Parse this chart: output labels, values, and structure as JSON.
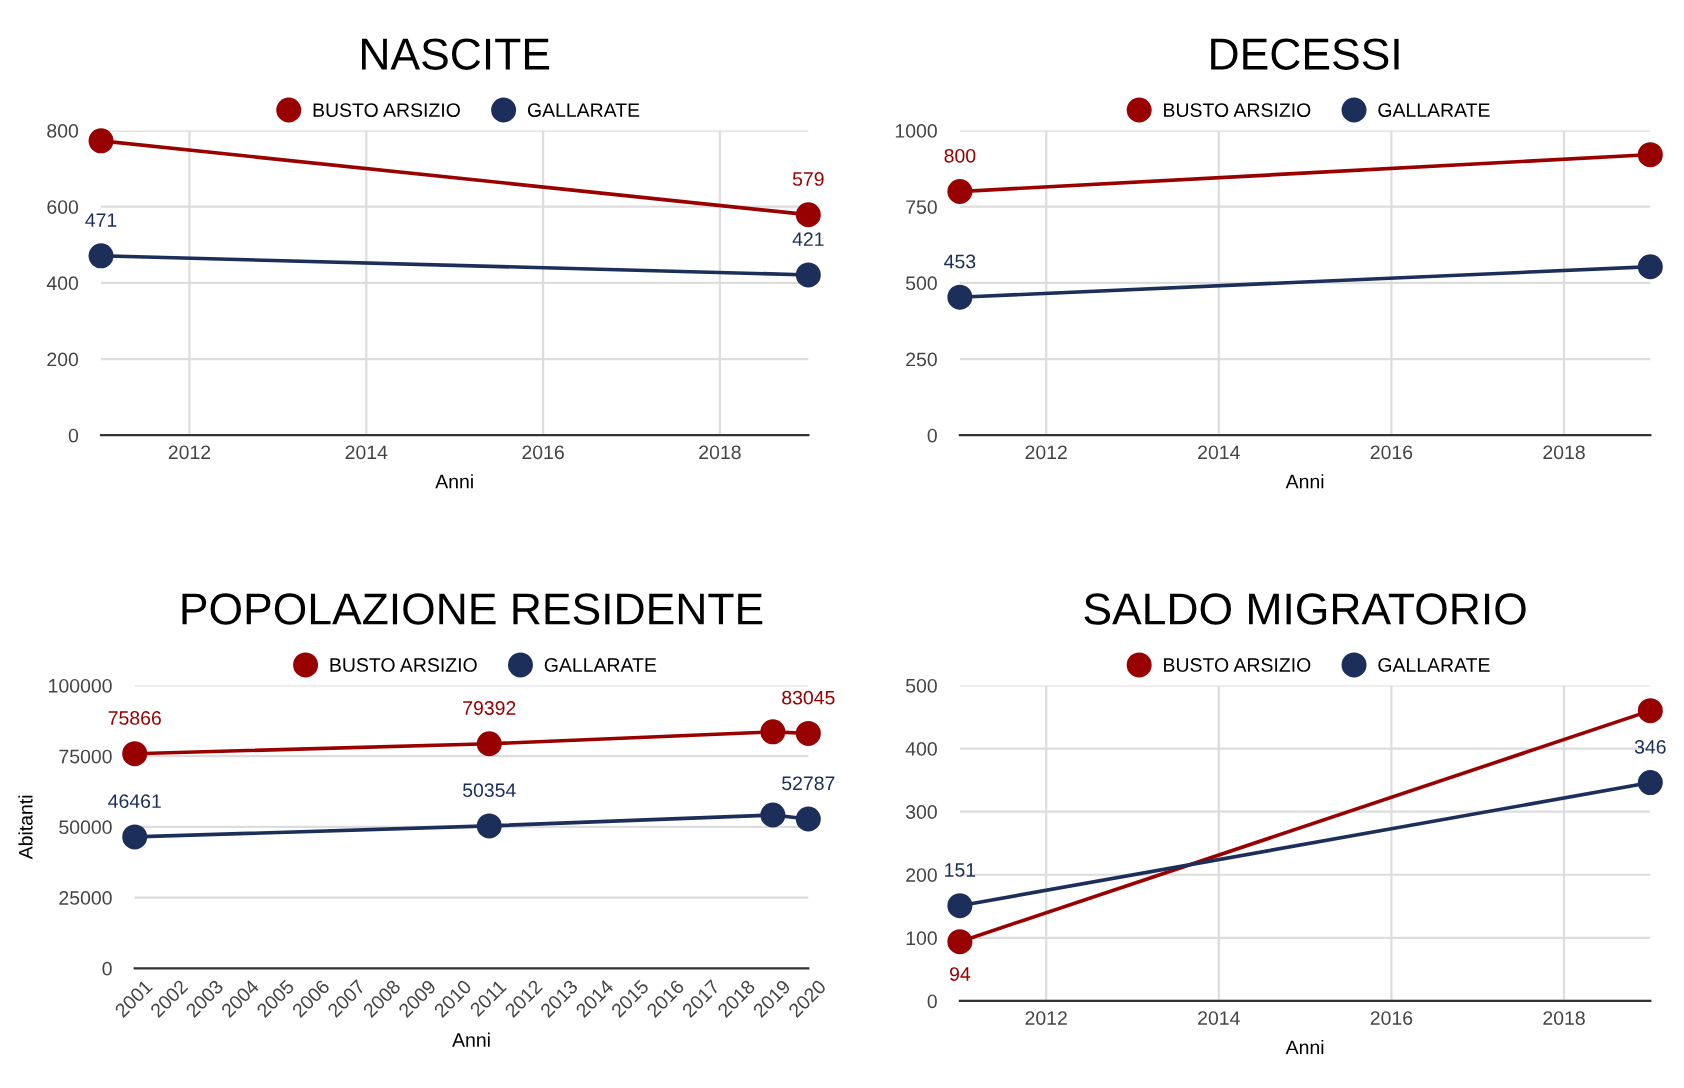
{
  "chart_data": [
    {
      "type": "line",
      "title": "NASCITE",
      "xlabel": "Anni",
      "x": [
        2011,
        2019
      ],
      "xlim": [
        2011,
        2019
      ],
      "xticks": [
        2012,
        2014,
        2016,
        2018
      ],
      "ylim": [
        0,
        800
      ],
      "yticks": [
        0,
        200,
        400,
        600,
        800
      ],
      "grid": true,
      "legend": "top",
      "marker": "circle",
      "series": [
        {
          "name": "BUSTO ARSIZIO",
          "color": "#990000",
          "values": [
            773,
            579
          ],
          "value_labels": [
            null,
            "579"
          ]
        },
        {
          "name": "GALLARATE",
          "color": "#1c2f5a",
          "values": [
            471,
            421
          ],
          "value_labels": [
            "471",
            "421"
          ]
        }
      ]
    },
    {
      "type": "line",
      "title": "DECESSI",
      "xlabel": "Anni",
      "x": [
        2011,
        2019
      ],
      "xlim": [
        2011,
        2019
      ],
      "xticks": [
        2012,
        2014,
        2016,
        2018
      ],
      "ylim": [
        0,
        1000
      ],
      "yticks": [
        0,
        250,
        500,
        750,
        1000
      ],
      "grid": true,
      "legend": "top",
      "marker": "circle",
      "series": [
        {
          "name": "BUSTO ARSIZIO",
          "color": "#990000",
          "values": [
            800,
            921
          ],
          "value_labels": [
            "800",
            null
          ]
        },
        {
          "name": "GALLARATE",
          "color": "#1c2f5a",
          "values": [
            453,
            553
          ],
          "value_labels": [
            "453",
            null
          ]
        }
      ]
    },
    {
      "type": "line",
      "title": "POPOLAZIONE RESIDENTE",
      "xlabel": "Anni",
      "ylabel": "Abitanti",
      "x": [
        2001,
        2011,
        2019,
        2020
      ],
      "xlim": [
        2001,
        2020
      ],
      "xticks": [
        2001,
        2002,
        2003,
        2004,
        2005,
        2006,
        2007,
        2008,
        2009,
        2010,
        2011,
        2012,
        2013,
        2014,
        2015,
        2016,
        2017,
        2018,
        2019,
        2020
      ],
      "ylim": [
        0,
        100000
      ],
      "yticks": [
        0,
        25000,
        50000,
        75000,
        100000
      ],
      "grid": "y",
      "legend": "top",
      "marker": "circle",
      "series": [
        {
          "name": "BUSTO ARSIZIO",
          "color": "#990000",
          "values": [
            75866,
            79392,
            83600,
            83045
          ],
          "value_labels": [
            "75866",
            "79392",
            null,
            "83045"
          ]
        },
        {
          "name": "GALLARATE",
          "color": "#1c2f5a",
          "values": [
            46461,
            50354,
            54200,
            52787
          ],
          "value_labels": [
            "46461",
            "50354",
            null,
            "52787"
          ]
        }
      ]
    },
    {
      "type": "line",
      "title": "SALDO MIGRATORIO",
      "xlabel": "Anni",
      "x": [
        2011,
        2019
      ],
      "xlim": [
        2011,
        2019
      ],
      "xticks": [
        2012,
        2014,
        2016,
        2018
      ],
      "ylim": [
        0,
        500
      ],
      "yticks": [
        0,
        100,
        200,
        300,
        400,
        500
      ],
      "grid": true,
      "legend": "top",
      "marker": "circle",
      "series": [
        {
          "name": "BUSTO ARSIZIO",
          "color": "#990000",
          "values": [
            94,
            460
          ],
          "value_labels": [
            "94",
            null
          ]
        },
        {
          "name": "GALLARATE",
          "color": "#1c2f5a",
          "values": [
            151,
            346
          ],
          "value_labels": [
            "151",
            "346"
          ]
        }
      ]
    }
  ]
}
